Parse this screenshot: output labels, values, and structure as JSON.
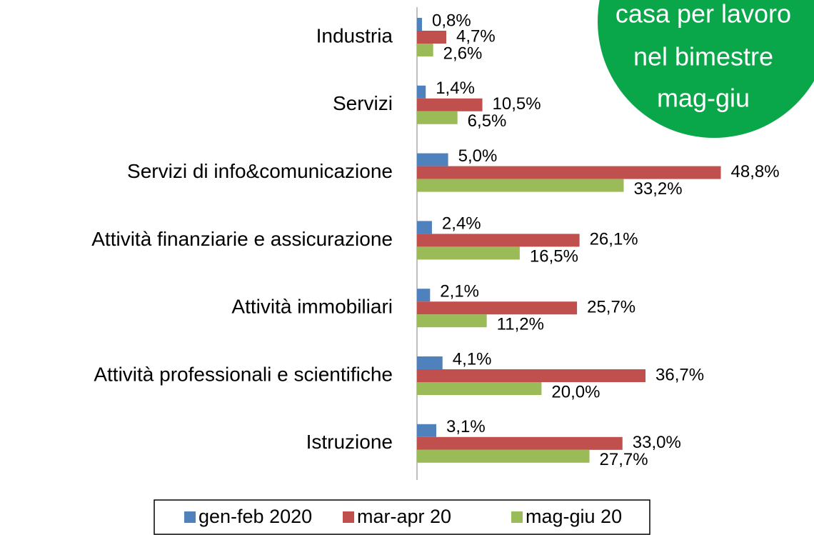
{
  "chart_data": {
    "type": "hbar",
    "annotation": [
      "casa per lavoro",
      "nel bimestre",
      "mag-giu"
    ],
    "categories": [
      "Industria",
      "Servizi",
      "Servizi di info&comunicazione",
      "Attività finanziarie e assicurazione",
      "Attività immobiliari",
      "Attività professionali e scientifiche",
      "Istruzione"
    ],
    "series": [
      {
        "name": "gen-feb 2020",
        "color": "#4f81bd",
        "values": [
          0.8,
          1.4,
          5.0,
          2.4,
          2.1,
          4.1,
          3.1
        ],
        "value_labels": [
          "0,8%",
          "1,4%",
          "5,0%",
          "2,4%",
          "2,1%",
          "4,1%",
          "3,1%"
        ]
      },
      {
        "name": "mar-apr 20",
        "color": "#c0504d",
        "values": [
          4.7,
          10.5,
          48.8,
          26.1,
          25.7,
          36.7,
          33.0
        ],
        "value_labels": [
          "4,7%",
          "10,5%",
          "48,8%",
          "26,1%",
          "25,7%",
          "36,7%",
          "33,0%"
        ]
      },
      {
        "name": "mag-giu 20",
        "color": "#9bbb59",
        "values": [
          2.6,
          6.5,
          33.2,
          16.5,
          11.2,
          20.0,
          27.7
        ],
        "value_labels": [
          "2,6%",
          "6,5%",
          "33,2%",
          "16,5%",
          "11,2%",
          "20,0%",
          "27,7%"
        ]
      }
    ],
    "xlim": [
      0,
      50
    ],
    "legend": "bottom"
  }
}
